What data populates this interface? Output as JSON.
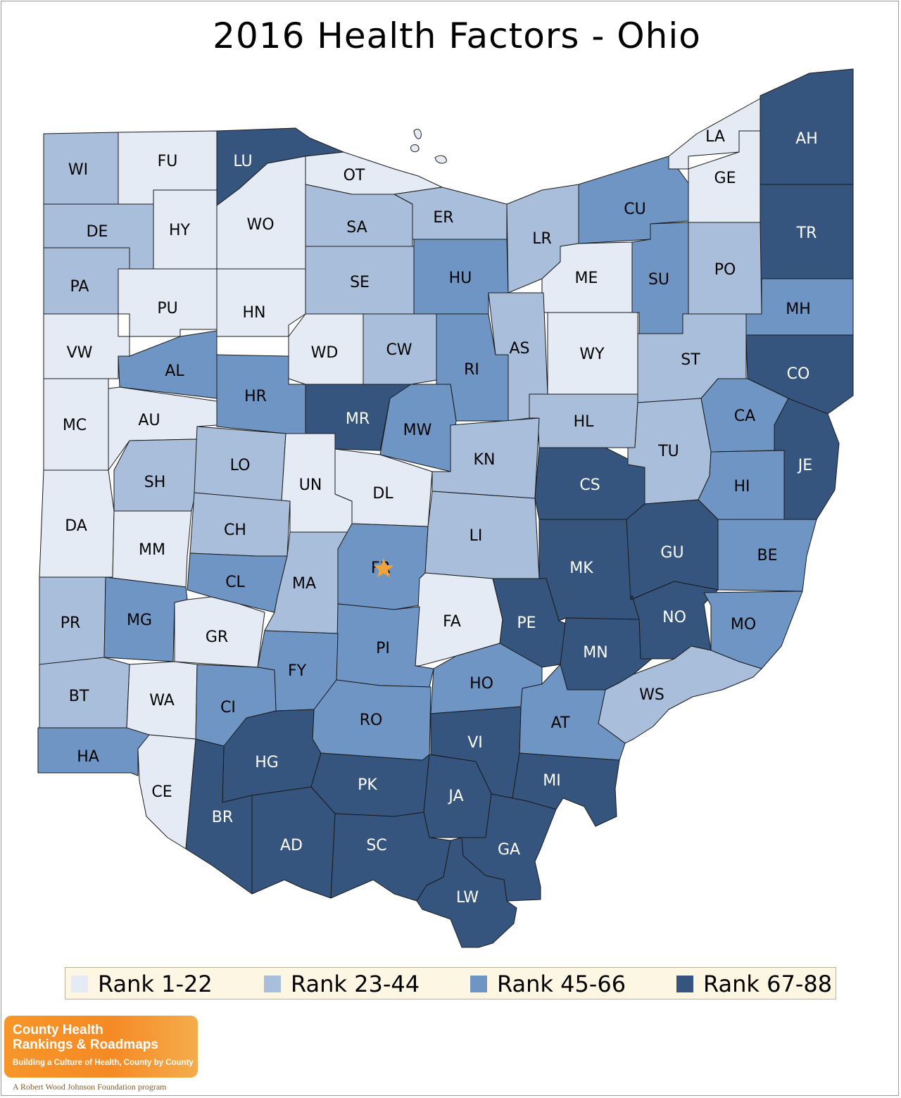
{
  "title": "2016 Health Factors - Ohio",
  "colors": {
    "rank_1_22": "#e4ebf5",
    "rank_23_44": "#a9bedb",
    "rank_45_66": "#6e95c3",
    "rank_67_88": "#35557f",
    "outline": "#1a1a1a",
    "star": "#f2a23a"
  },
  "legend": [
    {
      "label": "Rank 1-22",
      "tier": "rank_1_22"
    },
    {
      "label": "Rank 23-44",
      "tier": "rank_23_44"
    },
    {
      "label": "Rank 45-66",
      "tier": "rank_45_66"
    },
    {
      "label": "Rank 67-88",
      "tier": "rank_67_88"
    }
  ],
  "counties": [
    {
      "code": "WI",
      "tier": "rank_23_44"
    },
    {
      "code": "FU",
      "tier": "rank_1_22"
    },
    {
      "code": "LU",
      "tier": "rank_67_88"
    },
    {
      "code": "OT",
      "tier": "rank_1_22"
    },
    {
      "code": "DE",
      "tier": "rank_23_44"
    },
    {
      "code": "HY",
      "tier": "rank_1_22"
    },
    {
      "code": "WO",
      "tier": "rank_1_22"
    },
    {
      "code": "SA",
      "tier": "rank_23_44"
    },
    {
      "code": "ER",
      "tier": "rank_23_44"
    },
    {
      "code": "PA",
      "tier": "rank_23_44"
    },
    {
      "code": "PU",
      "tier": "rank_1_22"
    },
    {
      "code": "HN",
      "tier": "rank_1_22"
    },
    {
      "code": "SE",
      "tier": "rank_23_44"
    },
    {
      "code": "HU",
      "tier": "rank_45_66"
    },
    {
      "code": "LR",
      "tier": "rank_23_44"
    },
    {
      "code": "CU",
      "tier": "rank_45_66"
    },
    {
      "code": "LA",
      "tier": "rank_1_22"
    },
    {
      "code": "GE",
      "tier": "rank_1_22"
    },
    {
      "code": "AH",
      "tier": "rank_67_88"
    },
    {
      "code": "TR",
      "tier": "rank_67_88"
    },
    {
      "code": "ME",
      "tier": "rank_1_22"
    },
    {
      "code": "SU",
      "tier": "rank_45_66"
    },
    {
      "code": "PO",
      "tier": "rank_23_44"
    },
    {
      "code": "MH",
      "tier": "rank_45_66"
    },
    {
      "code": "VW",
      "tier": "rank_1_22"
    },
    {
      "code": "AL",
      "tier": "rank_45_66"
    },
    {
      "code": "WD",
      "tier": "rank_1_22"
    },
    {
      "code": "CW",
      "tier": "rank_23_44"
    },
    {
      "code": "RI",
      "tier": "rank_45_66"
    },
    {
      "code": "AS",
      "tier": "rank_23_44"
    },
    {
      "code": "WY",
      "tier": "rank_1_22"
    },
    {
      "code": "ST",
      "tier": "rank_23_44"
    },
    {
      "code": "CO",
      "tier": "rank_67_88"
    },
    {
      "code": "MC",
      "tier": "rank_1_22"
    },
    {
      "code": "AU",
      "tier": "rank_1_22"
    },
    {
      "code": "HR",
      "tier": "rank_45_66"
    },
    {
      "code": "MR",
      "tier": "rank_67_88"
    },
    {
      "code": "MW",
      "tier": "rank_45_66"
    },
    {
      "code": "HL",
      "tier": "rank_23_44"
    },
    {
      "code": "CA",
      "tier": "rank_45_66"
    },
    {
      "code": "SH",
      "tier": "rank_23_44"
    },
    {
      "code": "LO",
      "tier": "rank_23_44"
    },
    {
      "code": "UN",
      "tier": "rank_1_22"
    },
    {
      "code": "DL",
      "tier": "rank_1_22"
    },
    {
      "code": "KN",
      "tier": "rank_23_44"
    },
    {
      "code": "CS",
      "tier": "rank_67_88"
    },
    {
      "code": "TU",
      "tier": "rank_23_44"
    },
    {
      "code": "JE",
      "tier": "rank_67_88"
    },
    {
      "code": "HI",
      "tier": "rank_45_66"
    },
    {
      "code": "DA",
      "tier": "rank_1_22"
    },
    {
      "code": "MM",
      "tier": "rank_1_22"
    },
    {
      "code": "CH",
      "tier": "rank_23_44"
    },
    {
      "code": "LI",
      "tier": "rank_23_44"
    },
    {
      "code": "MK",
      "tier": "rank_67_88"
    },
    {
      "code": "GU",
      "tier": "rank_67_88"
    },
    {
      "code": "BE",
      "tier": "rank_45_66"
    },
    {
      "code": "CL",
      "tier": "rank_45_66"
    },
    {
      "code": "MA",
      "tier": "rank_23_44"
    },
    {
      "code": "FR",
      "tier": "rank_45_66"
    },
    {
      "code": "PR",
      "tier": "rank_23_44"
    },
    {
      "code": "MG",
      "tier": "rank_45_66"
    },
    {
      "code": "FA",
      "tier": "rank_1_22"
    },
    {
      "code": "PE",
      "tier": "rank_67_88"
    },
    {
      "code": "NO",
      "tier": "rank_67_88"
    },
    {
      "code": "MO",
      "tier": "rank_45_66"
    },
    {
      "code": "GR",
      "tier": "rank_1_22"
    },
    {
      "code": "PI",
      "tier": "rank_45_66"
    },
    {
      "code": "MN",
      "tier": "rank_67_88"
    },
    {
      "code": "FY",
      "tier": "rank_45_66"
    },
    {
      "code": "BT",
      "tier": "rank_23_44"
    },
    {
      "code": "WA",
      "tier": "rank_1_22"
    },
    {
      "code": "CI",
      "tier": "rank_45_66"
    },
    {
      "code": "HO",
      "tier": "rank_45_66"
    },
    {
      "code": "WS",
      "tier": "rank_23_44"
    },
    {
      "code": "RO",
      "tier": "rank_45_66"
    },
    {
      "code": "AT",
      "tier": "rank_45_66"
    },
    {
      "code": "HA",
      "tier": "rank_45_66"
    },
    {
      "code": "VI",
      "tier": "rank_67_88"
    },
    {
      "code": "HG",
      "tier": "rank_67_88"
    },
    {
      "code": "MI",
      "tier": "rank_67_88"
    },
    {
      "code": "PK",
      "tier": "rank_67_88"
    },
    {
      "code": "CE",
      "tier": "rank_1_22"
    },
    {
      "code": "JA",
      "tier": "rank_67_88"
    },
    {
      "code": "BR",
      "tier": "rank_67_88"
    },
    {
      "code": "AD",
      "tier": "rank_67_88"
    },
    {
      "code": "SC",
      "tier": "rank_67_88"
    },
    {
      "code": "GA",
      "tier": "rank_67_88"
    },
    {
      "code": "LW",
      "tier": "rank_67_88"
    }
  ],
  "capital_marker": {
    "county": "FR",
    "icon": "star-icon"
  },
  "logo": {
    "line1": "County Health",
    "line2": "Rankings & Roadmaps",
    "tagline": "Building a Culture of Health, County by County",
    "foundation": "A Robert Wood Johnson Foundation program"
  }
}
